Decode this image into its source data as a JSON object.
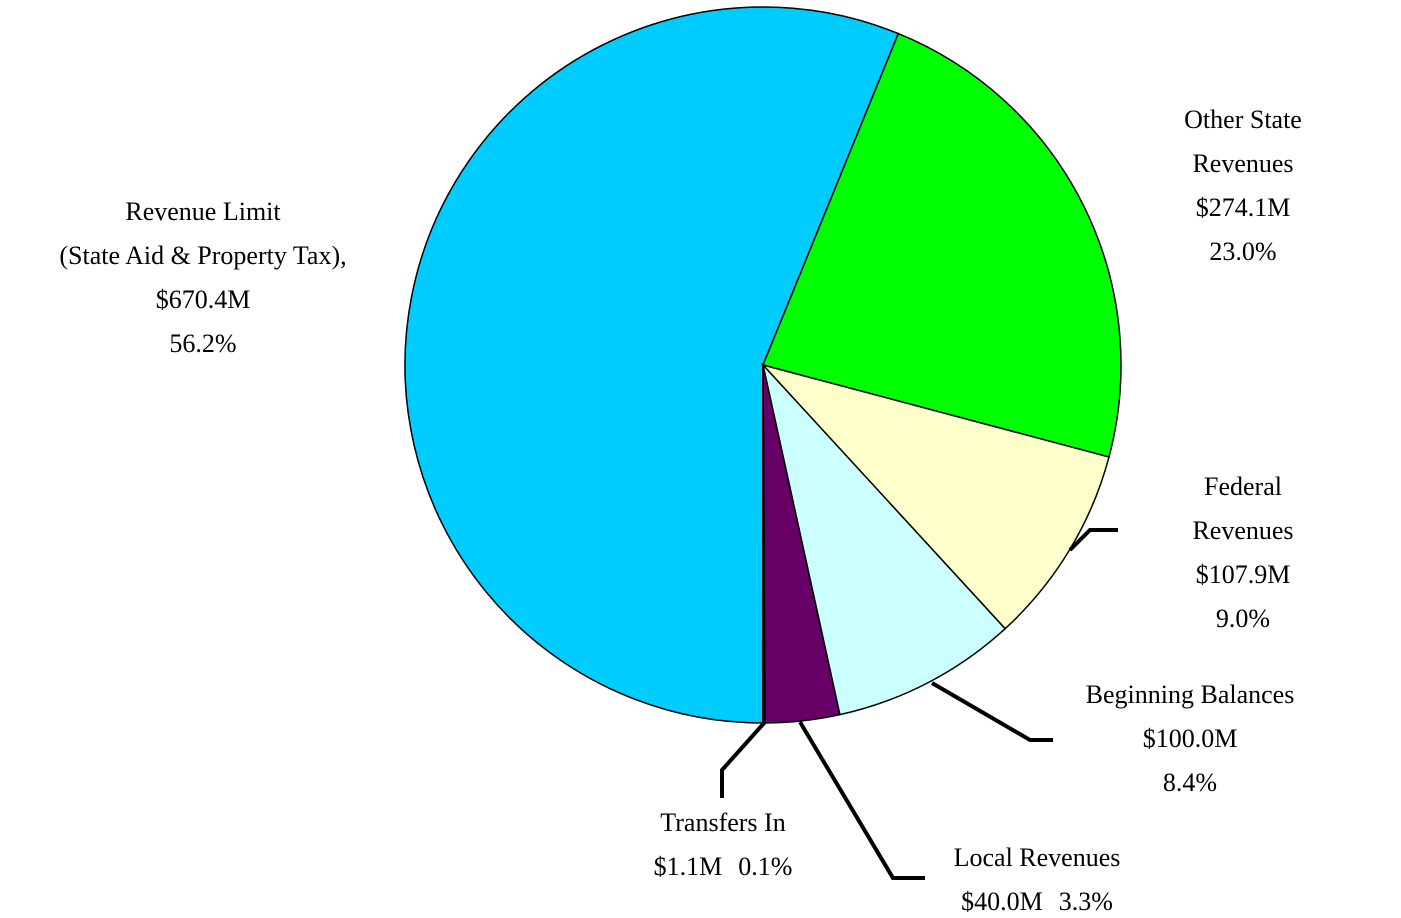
{
  "chart_data": {
    "type": "pie",
    "categories": [
      "Revenue Limit\n(State Aid & Property Tax),",
      "Other State Revenues",
      "Federal Revenues",
      "Beginning Balances",
      "Local Revenues",
      "Transfers In"
    ],
    "values": [
      670.4,
      274.1,
      107.9,
      100.0,
      40.0,
      1.1
    ],
    "value_labels": [
      "$670.4M",
      "$274.1M",
      "$107.9M",
      "$100.0M",
      "$40.0M",
      "$1.1M"
    ],
    "shares": [
      56.2,
      23.0,
      9.0,
      8.4,
      3.3,
      0.1
    ],
    "share_labels": [
      "56.2%",
      "23.0%",
      "9.0%",
      "8.4%",
      "3.3%",
      "0.1%"
    ],
    "colors": [
      "#00ccff",
      "#00ff00",
      "#ffffcc",
      "#ccffff",
      "#660066",
      "#000066"
    ]
  }
}
